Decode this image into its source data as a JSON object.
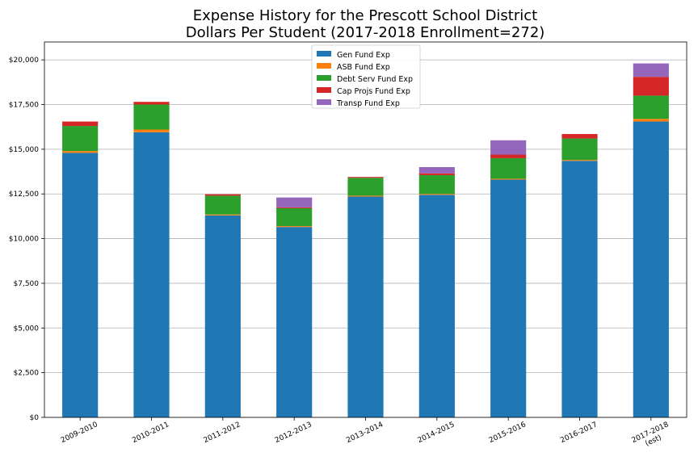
{
  "chart_data": {
    "type": "bar",
    "stacked": true,
    "title_line1": "Expense History for the Prescott School District",
    "title_line2": "Dollars Per Student (2017-2018 Enrollment=272)",
    "categories": [
      "2009-2010",
      "2010-2011",
      "2011-2012",
      "2012-2013",
      "2013-2014",
      "2014-2015",
      "2015-2016",
      "2016-2017",
      "2017-2018 (est)"
    ],
    "category_labels": [
      [
        "2009-2010"
      ],
      [
        "2010-2011"
      ],
      [
        "2011-2012"
      ],
      [
        "2012-2013"
      ],
      [
        "2013-2014"
      ],
      [
        "2014-2015"
      ],
      [
        "2015-2016"
      ],
      [
        "2016-2017"
      ],
      [
        "2017-2018",
        "(est)"
      ]
    ],
    "ylim": [
      0,
      21000
    ],
    "yticks": [
      0,
      2500,
      5000,
      7500,
      10000,
      12500,
      15000,
      17500,
      20000
    ],
    "ytick_labels": [
      "$0",
      "$2,500",
      "$5,000",
      "$7,500",
      "$10,000",
      "$12,500",
      "$15,000",
      "$17,500",
      "$20,000"
    ],
    "grid": true,
    "legend_position": "top-center",
    "series": [
      {
        "name": "Gen Fund Exp",
        "color": "#1f77b4",
        "values": [
          14800,
          15950,
          11300,
          10650,
          12350,
          12450,
          13300,
          14350,
          16550
        ]
      },
      {
        "name": "ASB Fund Exp",
        "color": "#ff7f0e",
        "values": [
          100,
          150,
          50,
          50,
          50,
          50,
          50,
          50,
          150
        ]
      },
      {
        "name": "Debt Serv Fund Exp",
        "color": "#2ca02c",
        "values": [
          1400,
          1400,
          1050,
          1000,
          1000,
          1050,
          1150,
          1200,
          1300
        ]
      },
      {
        "name": "Cap Projs Fund Exp",
        "color": "#d62728",
        "values": [
          250,
          150,
          80,
          50,
          50,
          100,
          200,
          250,
          1050
        ]
      },
      {
        "name": "Transp Fund Exp",
        "color": "#9467bd",
        "values": [
          0,
          0,
          0,
          550,
          0,
          350,
          800,
          0,
          750
        ]
      }
    ]
  }
}
